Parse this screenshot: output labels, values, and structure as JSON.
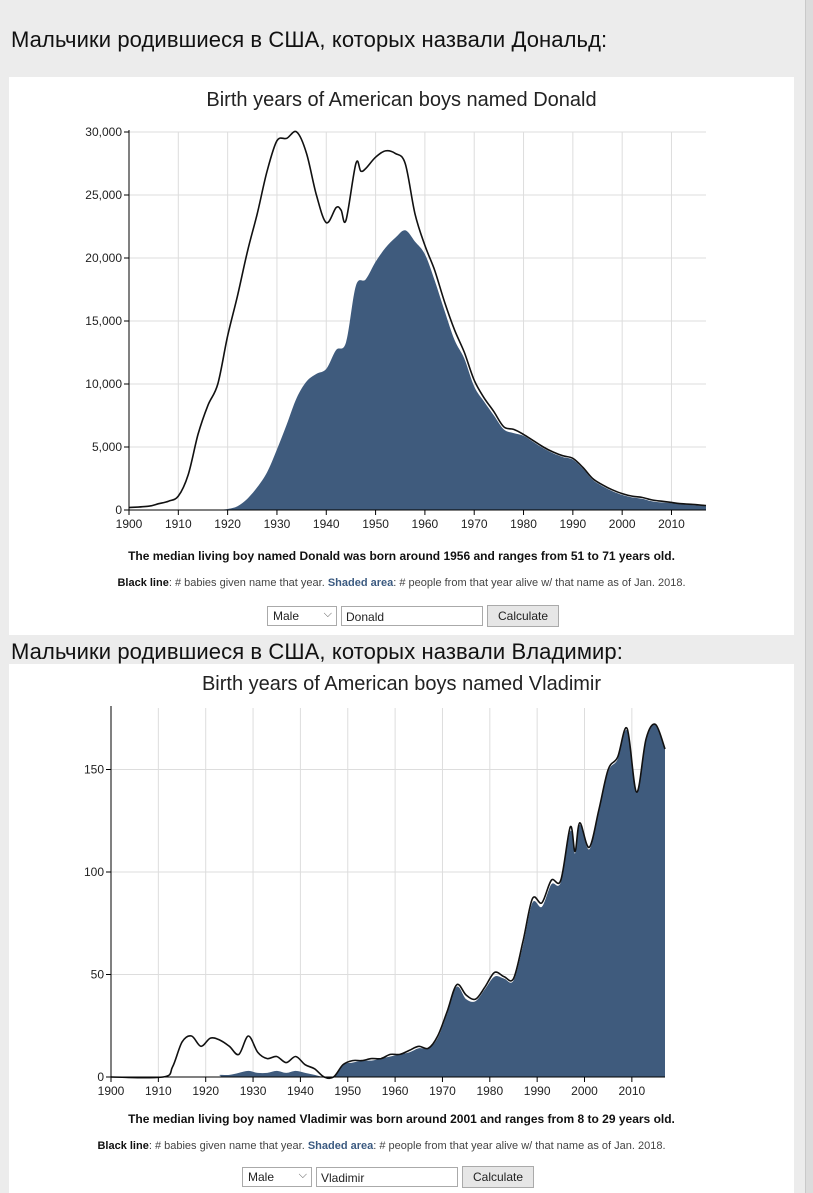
{
  "headings": {
    "donald": "Мальчики родившиеся в США, которых назвали Дональд:",
    "vladimir": "Мальчики родившиеся в США, которых назвали Владимир:"
  },
  "legend": {
    "black_label": "Black line",
    "black_text": ": # babies given name that year. ",
    "shaded_label": "Shaded area",
    "shaded_text": ": # people from that year alive w/ that name as of Jan. 2018."
  },
  "charts": [
    {
      "title": "Birth years of American boys named Donald",
      "median_text": "The median living boy named Donald was born around 1956 and ranges from 51 to 71 years old.",
      "form": {
        "gender": "Male",
        "name": "Donald",
        "button": "Calculate"
      }
    },
    {
      "title": "Birth years of American boys named Vladimir",
      "median_text": "The median living boy named Vladimir was born around 2001 and ranges from 8 to 29 years old.",
      "form": {
        "gender": "Male",
        "name": "Vladimir",
        "button": "Calculate"
      }
    }
  ],
  "colors": {
    "shaded": "#3f5b7d",
    "line": "#111111",
    "grid": "#dddddd"
  },
  "chart_data": [
    {
      "type": "area",
      "title": "Birth years of American boys named Donald",
      "xlabel": "",
      "ylabel": "",
      "xlim": [
        1900,
        2017
      ],
      "ylim": [
        0,
        30000
      ],
      "x_ticks": [
        1900,
        1910,
        1920,
        1930,
        1940,
        1950,
        1960,
        1970,
        1980,
        1990,
        2000,
        2010
      ],
      "y_ticks": [
        0,
        5000,
        10000,
        15000,
        20000,
        25000,
        30000
      ],
      "y_tick_labels": [
        "0",
        "5,000",
        "10,000",
        "15,000",
        "20,000",
        "25,000",
        "30,000"
      ],
      "grid": true,
      "series": [
        {
          "name": "Black line",
          "x": [
            1900,
            1904,
            1906,
            1908,
            1910,
            1912,
            1914,
            1916,
            1918,
            1920,
            1922,
            1924,
            1926,
            1928,
            1930,
            1932,
            1934,
            1936,
            1938,
            1940,
            1942,
            1943,
            1944,
            1946,
            1947,
            1948,
            1950,
            1952,
            1954,
            1956,
            1958,
            1960,
            1962,
            1964,
            1966,
            1968,
            1970,
            1972,
            1974,
            1976,
            1978,
            1980,
            1982,
            1984,
            1986,
            1988,
            1990,
            1992,
            1994,
            1996,
            1998,
            2000,
            2002,
            2004,
            2006,
            2008,
            2010,
            2012,
            2014,
            2017
          ],
          "values": [
            200,
            300,
            500,
            700,
            1100,
            2800,
            6000,
            8300,
            10000,
            13800,
            17000,
            20500,
            23500,
            26900,
            29300,
            29500,
            30000,
            28300,
            25000,
            22800,
            24000,
            23800,
            23000,
            27500,
            26900,
            27100,
            28000,
            28500,
            28300,
            27500,
            23500,
            21000,
            19000,
            16500,
            14300,
            12500,
            10300,
            8900,
            7800,
            6600,
            6400,
            6000,
            5500,
            5000,
            4600,
            4300,
            4100,
            3400,
            2500,
            2000,
            1600,
            1300,
            1100,
            1000,
            800,
            700,
            600,
            500,
            450,
            350
          ]
        },
        {
          "name": "Shaded area",
          "x": [
            1918,
            1920,
            1922,
            1924,
            1926,
            1928,
            1930,
            1932,
            1934,
            1936,
            1938,
            1940,
            1942,
            1944,
            1946,
            1948,
            1950,
            1952,
            1954,
            1956,
            1958,
            1960,
            1962,
            1964,
            1966,
            1968,
            1970,
            1972,
            1974,
            1976,
            1978,
            1980,
            1982,
            1984,
            1986,
            1988,
            1990,
            1992,
            1994,
            1996,
            1998,
            2000,
            2002,
            2004,
            2006,
            2008,
            2010,
            2012,
            2014,
            2017
          ],
          "values": [
            0,
            80,
            300,
            900,
            1800,
            3000,
            4800,
            6800,
            8900,
            10200,
            10800,
            11200,
            12700,
            13300,
            17800,
            18300,
            19700,
            20800,
            21600,
            22200,
            21300,
            20300,
            18200,
            15800,
            13500,
            12000,
            9800,
            8600,
            7500,
            6400,
            6100,
            5900,
            5400,
            4900,
            4500,
            4200,
            4000,
            3300,
            2400,
            1900,
            1500,
            1200,
            1000,
            900,
            700,
            600,
            550,
            450,
            400,
            300
          ]
        }
      ]
    },
    {
      "type": "area",
      "title": "Birth years of American boys named Vladimir",
      "xlabel": "",
      "ylabel": "",
      "xlim": [
        1900,
        2017
      ],
      "ylim": [
        0,
        180
      ],
      "x_ticks": [
        1900,
        1910,
        1920,
        1930,
        1940,
        1950,
        1960,
        1970,
        1980,
        1990,
        2000,
        2010
      ],
      "y_ticks": [
        0,
        50,
        100,
        150
      ],
      "y_tick_labels": [
        "0",
        "50",
        "100",
        "150"
      ],
      "grid": true,
      "series": [
        {
          "name": "Black line",
          "x": [
            1900,
            1911,
            1913,
            1915,
            1917,
            1919,
            1921,
            1923,
            1925,
            1927,
            1929,
            1931,
            1933,
            1935,
            1937,
            1939,
            1941,
            1943,
            1945,
            1947,
            1949,
            1951,
            1953,
            1955,
            1957,
            1959,
            1961,
            1963,
            1965,
            1967,
            1969,
            1971,
            1973,
            1975,
            1977,
            1979,
            1981,
            1983,
            1985,
            1987,
            1989,
            1991,
            1993,
            1995,
            1997,
            1998,
            1999,
            2001,
            2003,
            2005,
            2007,
            2009,
            2011,
            2013,
            2015,
            2017
          ],
          "values": [
            0,
            0,
            5,
            17,
            20,
            15,
            19,
            18,
            15,
            11,
            20,
            12,
            9,
            10,
            7,
            10,
            6,
            4,
            0,
            0,
            6,
            8,
            8,
            9,
            9,
            11,
            11,
            13,
            15,
            14,
            20,
            32,
            45,
            40,
            38,
            44,
            51,
            49,
            48,
            66,
            87,
            85,
            96,
            96,
            122,
            110,
            124,
            112,
            130,
            150,
            156,
            170,
            139,
            165,
            172,
            160
          ]
        },
        {
          "name": "Shaded area",
          "x": [
            1900,
            1921,
            1923,
            1925,
            1927,
            1929,
            1931,
            1933,
            1935,
            1937,
            1939,
            1941,
            1943,
            1945,
            1947,
            1949,
            1951,
            1953,
            1955,
            1957,
            1959,
            1961,
            1963,
            1965,
            1967,
            1969,
            1971,
            1973,
            1975,
            1977,
            1979,
            1981,
            1983,
            1985,
            1987,
            1989,
            1991,
            1993,
            1995,
            1997,
            1998,
            1999,
            2001,
            2003,
            2005,
            2007,
            2009,
            2011,
            2013,
            2015,
            2017
          ],
          "values": [
            0,
            0,
            1,
            1,
            2,
            3,
            2,
            2,
            3,
            2,
            3,
            2,
            1,
            0,
            0,
            6,
            7,
            8,
            8,
            9,
            10,
            11,
            12,
            14,
            14,
            19,
            31,
            44,
            38,
            37,
            43,
            49,
            48,
            47,
            64,
            85,
            83,
            94,
            95,
            120,
            109,
            123,
            111,
            129,
            149,
            155,
            169,
            139,
            164,
            172,
            160
          ]
        }
      ]
    }
  ]
}
